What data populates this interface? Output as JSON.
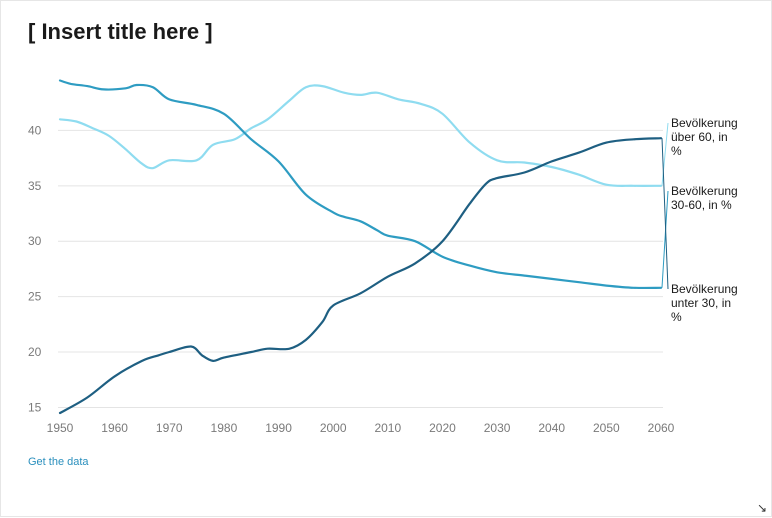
{
  "chart_data": {
    "type": "line",
    "title": "[ Insert title here ]",
    "xlabel": "",
    "ylabel": "",
    "xlim": [
      1950,
      2060
    ],
    "ylim": [
      14.5,
      45
    ],
    "x_ticks": [
      1950,
      1960,
      1970,
      1980,
      1990,
      2000,
      2010,
      2020,
      2030,
      2040,
      2050,
      2060
    ],
    "y_ticks": [
      15,
      20,
      25,
      30,
      35,
      40
    ],
    "grid": true,
    "legend": "direct labels at right end of lines",
    "series": [
      {
        "name": "Bevölkerung über 60, in %",
        "label_lines": [
          "Bevölkerung",
          "über 60, in",
          "%"
        ],
        "color": "#8fdcf0",
        "x": [
          1950,
          1953,
          1956,
          1959,
          1962,
          1965,
          1967,
          1970,
          1975,
          1978,
          1982,
          1985,
          1988,
          1992,
          1995,
          1998,
          2002,
          2005,
          2008,
          2012,
          2016,
          2020,
          2025,
          2030,
          2035,
          2040,
          2045,
          2050,
          2055,
          2060
        ],
        "y": [
          41.0,
          40.8,
          40.2,
          39.5,
          38.3,
          37.0,
          36.6,
          37.3,
          37.3,
          38.7,
          39.2,
          40.2,
          41.0,
          42.7,
          43.9,
          44.0,
          43.4,
          43.2,
          43.4,
          42.8,
          42.4,
          41.5,
          38.9,
          37.3,
          37.1,
          36.7,
          36.0,
          35.1,
          35.0,
          35.0
        ]
      },
      {
        "name": "Bevölkerung 30-60, in %",
        "label_lines": [
          "Bevölkerung",
          "30-60, in %"
        ],
        "color": "#2e9cc2",
        "x": [
          1950,
          1952,
          1955,
          1958,
          1962,
          1964,
          1967,
          1970,
          1975,
          1980,
          1985,
          1990,
          1995,
          2000,
          2002,
          2005,
          2008,
          2010,
          2015,
          2020,
          2025,
          2030,
          2035,
          2040,
          2045,
          2050,
          2055,
          2060
        ],
        "y": [
          44.5,
          44.2,
          44.0,
          43.7,
          43.8,
          44.1,
          43.9,
          42.8,
          42.3,
          41.5,
          39.2,
          37.2,
          34.2,
          32.6,
          32.2,
          31.8,
          31.0,
          30.5,
          30.0,
          28.6,
          27.8,
          27.2,
          26.9,
          26.6,
          26.3,
          26.0,
          25.8,
          25.8
        ]
      },
      {
        "name": "Bevölkerung unter 30, in %",
        "label_lines": [
          "Bevölkerung",
          "unter 30, in",
          "%"
        ],
        "color": "#1e5f82",
        "x": [
          1950,
          1955,
          1960,
          1965,
          1968,
          1970,
          1974,
          1976,
          1978,
          1980,
          1985,
          1988,
          1992,
          1995,
          1998,
          2000,
          2005,
          2010,
          2015,
          2020,
          2025,
          2028,
          2030,
          2035,
          2040,
          2045,
          2050,
          2055,
          2060
        ],
        "y": [
          14.5,
          15.9,
          17.8,
          19.2,
          19.7,
          20.0,
          20.5,
          19.7,
          19.2,
          19.5,
          20.0,
          20.3,
          20.3,
          21.1,
          22.7,
          24.2,
          25.3,
          26.8,
          28.0,
          30.0,
          33.4,
          35.2,
          35.7,
          36.2,
          37.2,
          38.0,
          38.9,
          39.2,
          39.3
        ]
      }
    ]
  },
  "footer": {
    "get_data_label": "Get the data"
  },
  "icons": {
    "resize": "resize-handle-icon"
  }
}
